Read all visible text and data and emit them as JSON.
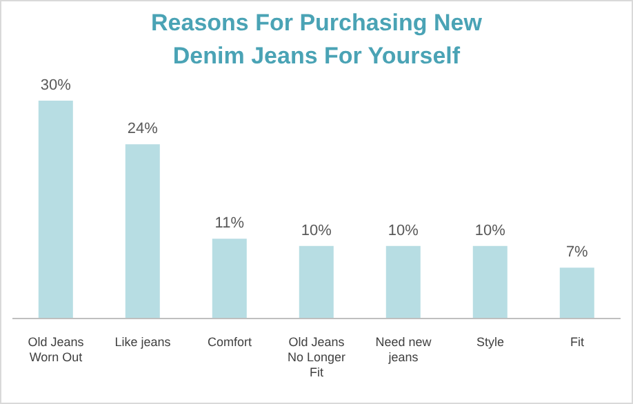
{
  "chart_data": {
    "type": "bar",
    "title": "Reasons For Purchasing  New Denim Jeans For Yourself",
    "categories": [
      "Old Jeans Worn Out",
      "Like jeans",
      "Comfort",
      "Old Jeans No Longer Fit",
      "Need new jeans",
      "Style",
      "Fit"
    ],
    "values": [
      30,
      24,
      11,
      10,
      10,
      10,
      7
    ],
    "value_labels": [
      "30%",
      "24%",
      "11%",
      "10%",
      "10%",
      "10%",
      "7%"
    ],
    "color": "#b7dde3",
    "grid": false,
    "legend": false
  }
}
